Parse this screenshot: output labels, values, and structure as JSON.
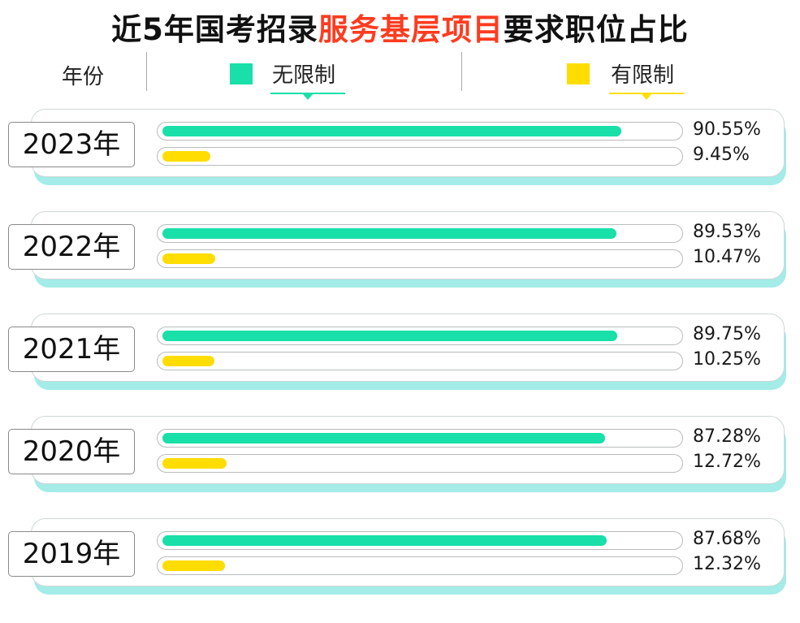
{
  "title": {
    "prefix": "近5年国考招录",
    "highlight": "服务基层项目",
    "suffix": "要求职位占比"
  },
  "legend": {
    "year_header": "年份",
    "items": [
      {
        "label": "无限制",
        "color": "#19dfa8"
      },
      {
        "label": "有限制",
        "color": "#ffdd00"
      }
    ]
  },
  "colors": {
    "highlight": "#ff3b1f",
    "card_shadow": "#a3ece8"
  },
  "chart_data": {
    "type": "bar",
    "orientation": "horizontal",
    "categories": [
      "2023年",
      "2022年",
      "2021年",
      "2020年",
      "2019年"
    ],
    "series": [
      {
        "name": "无限制",
        "values": [
          90.55,
          89.53,
          89.75,
          87.28,
          87.68
        ],
        "labels": [
          "90.55%",
          "89.53%",
          "89.75%",
          "87.28%",
          "87.68%"
        ]
      },
      {
        "name": "有限制",
        "values": [
          9.45,
          10.47,
          10.25,
          12.72,
          12.32
        ],
        "labels": [
          "9.45%",
          "10.47%",
          "10.25%",
          "12.72%",
          "12.32%"
        ]
      }
    ],
    "xlim": [
      0,
      100
    ]
  }
}
